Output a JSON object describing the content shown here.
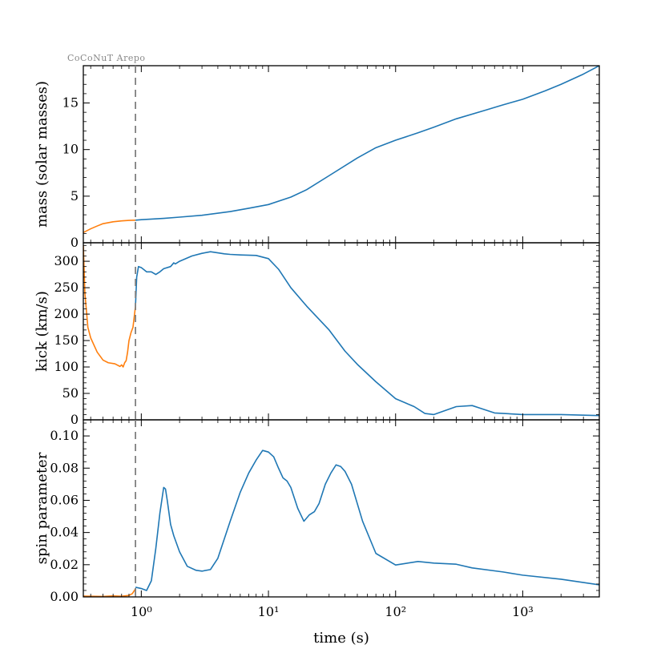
{
  "label_top": "CoCoNuT  Arepo",
  "vline_x": 0.9,
  "chart_data": [
    {
      "type": "line",
      "ylabel": "mass (solar masses)",
      "xscale": "log",
      "xlim": [
        0.35,
        4000
      ],
      "ylim": [
        0,
        19
      ],
      "yticks": [
        0,
        5,
        10,
        15
      ],
      "ytick_labels": [
        "0",
        "5",
        "10",
        "15"
      ],
      "series": [
        {
          "color": "#ff7f0e",
          "x": [
            0.35,
            0.4,
            0.45,
            0.5,
            0.6,
            0.7,
            0.8,
            0.9
          ],
          "y": [
            1.1,
            1.5,
            1.8,
            2.05,
            2.25,
            2.35,
            2.4,
            2.42
          ]
        },
        {
          "color": "#1f77b4",
          "x": [
            0.9,
            1,
            1.5,
            2,
            3,
            5,
            7,
            10,
            15,
            20,
            30,
            50,
            70,
            100,
            150,
            200,
            300,
            500,
            700,
            1000,
            1500,
            2000,
            3000,
            4000
          ],
          "y": [
            2.42,
            2.48,
            2.62,
            2.75,
            2.95,
            3.35,
            3.7,
            4.1,
            4.9,
            5.7,
            7.2,
            9.1,
            10.2,
            11.0,
            11.8,
            12.4,
            13.3,
            14.2,
            14.8,
            15.4,
            16.3,
            17.0,
            18.1,
            19.0
          ]
        }
      ]
    },
    {
      "type": "line",
      "ylabel": "kick (km/s)",
      "xscale": "log",
      "xlim": [
        0.35,
        4000
      ],
      "ylim": [
        0,
        335
      ],
      "yticks": [
        0,
        50,
        100,
        150,
        200,
        250,
        300
      ],
      "ytick_labels": [
        "0",
        "50",
        "100",
        "150",
        "200",
        "250",
        "300"
      ],
      "series": [
        {
          "color": "#ff7f0e",
          "x": [
            0.35,
            0.36,
            0.38,
            0.4,
            0.45,
            0.5,
            0.55,
            0.62,
            0.68,
            0.7,
            0.72,
            0.74,
            0.76,
            0.78,
            0.8,
            0.83,
            0.86,
            0.88,
            0.9
          ],
          "y": [
            330,
            240,
            175,
            155,
            128,
            113,
            108,
            106,
            101,
            104,
            100,
            108,
            112,
            128,
            150,
            165,
            175,
            195,
            215
          ]
        },
        {
          "color": "#1f77b4",
          "x": [
            0.9,
            0.92,
            0.95,
            1.0,
            1.05,
            1.1,
            1.2,
            1.3,
            1.4,
            1.5,
            1.7,
            1.8,
            1.85,
            2.0,
            2.5,
            3,
            3.5,
            4,
            4.5,
            5,
            6,
            8,
            10,
            12,
            15,
            20,
            30,
            40,
            50,
            70,
            100,
            140,
            170,
            200,
            300,
            400,
            600,
            1000,
            2000,
            4000
          ],
          "y": [
            215,
            270,
            290,
            288,
            284,
            280,
            280,
            275,
            280,
            286,
            290,
            297,
            295,
            300,
            310,
            315,
            318,
            316,
            314,
            313,
            312,
            311,
            305,
            285,
            250,
            215,
            170,
            130,
            105,
            72,
            40,
            25,
            12,
            10,
            25,
            27,
            13,
            10,
            10,
            8
          ]
        }
      ]
    },
    {
      "type": "line",
      "ylabel": "spin parameter",
      "xlabel": "time (s)",
      "xscale": "log",
      "xlim": [
        0.35,
        4000
      ],
      "ylim": [
        0,
        0.11
      ],
      "yticks": [
        0.0,
        0.02,
        0.04,
        0.06,
        0.08,
        0.1
      ],
      "ytick_labels": [
        "0.00",
        "0.02",
        "0.04",
        "0.06",
        "0.08",
        "0.10"
      ],
      "xticks": [
        1,
        10,
        100,
        1000
      ],
      "xtick_labels": [
        "10⁰",
        "10¹",
        "10²",
        "10³"
      ],
      "series": [
        {
          "color": "#ff7f0e",
          "x": [
            0.35,
            0.5,
            0.6,
            0.7,
            0.8,
            0.85,
            0.9
          ],
          "y": [
            0.0005,
            0.0003,
            0.0006,
            0.0004,
            0.0009,
            0.002,
            0.005
          ]
        },
        {
          "color": "#1f77b4",
          "x": [
            0.9,
            1.0,
            1.1,
            1.2,
            1.3,
            1.4,
            1.5,
            1.55,
            1.6,
            1.7,
            1.8,
            2.0,
            2.3,
            2.7,
            3.0,
            3.5,
            4,
            5,
            6,
            7,
            8,
            9,
            10,
            11,
            12,
            13,
            14,
            15,
            17,
            19,
            21,
            23,
            25,
            28,
            31,
            34,
            37,
            40,
            45,
            55,
            70,
            100,
            150,
            200,
            300,
            400,
            700,
            1000,
            2000,
            4000
          ],
          "y": [
            0.006,
            0.0052,
            0.004,
            0.01,
            0.03,
            0.052,
            0.068,
            0.067,
            0.06,
            0.045,
            0.038,
            0.028,
            0.019,
            0.0165,
            0.016,
            0.017,
            0.024,
            0.047,
            0.065,
            0.077,
            0.085,
            0.091,
            0.09,
            0.087,
            0.08,
            0.074,
            0.072,
            0.068,
            0.055,
            0.047,
            0.051,
            0.053,
            0.058,
            0.07,
            0.077,
            0.082,
            0.081,
            0.078,
            0.07,
            0.047,
            0.027,
            0.0198,
            0.022,
            0.021,
            0.0203,
            0.018,
            0.0155,
            0.0135,
            0.011,
            0.0075
          ]
        }
      ]
    }
  ]
}
